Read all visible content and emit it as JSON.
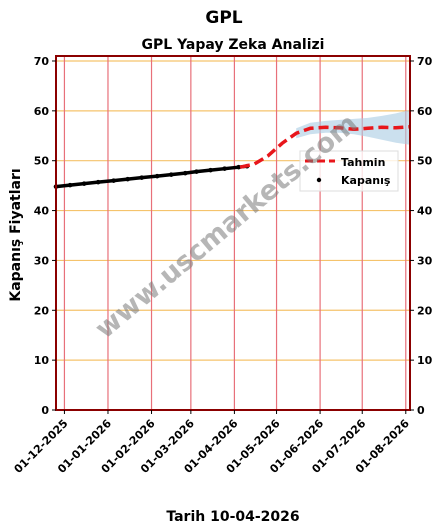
{
  "header": {
    "ticker": "GPL"
  },
  "footer": {
    "date_label": "Tarih 10-04-2026"
  },
  "watermark": "www.uscmarkets.com",
  "chart_data": {
    "type": "line",
    "title": "GPL Yapay Zeka Analizi",
    "xlabel": "",
    "ylabel": "Kapanış Fiyatları",
    "ylim": [
      0,
      71
    ],
    "xlim": [
      "2025-11-25",
      "2026-08-04"
    ],
    "yticks": [
      0,
      10,
      20,
      30,
      40,
      50,
      60,
      70
    ],
    "xticks": [
      "2025-12-01",
      "2026-01-01",
      "2026-02-01",
      "2026-03-01",
      "2026-04-01",
      "2026-05-01",
      "2026-06-01",
      "2026-07-01",
      "2026-08-01"
    ],
    "xtick_labels": [
      "01-12-2025",
      "01-01-2026",
      "01-02-2026",
      "01-03-2026",
      "01-04-2026",
      "01-05-2026",
      "01-06-2026",
      "01-07-2026",
      "01-08-2026"
    ],
    "grid": true,
    "legend_position": "center-right",
    "colors": {
      "forecast": "#e8161b",
      "close": "#000000",
      "band": "#a9cbe3",
      "grid_v": "#e8707a",
      "grid_h": "#f5c36c",
      "frame": "#8b0000"
    },
    "series": [
      {
        "name": "Kapanış",
        "style": "dots",
        "x": [
          "2025-11-25",
          "2025-12-05",
          "2025-12-15",
          "2025-12-25",
          "2026-01-05",
          "2026-01-15",
          "2026-01-25",
          "2026-02-05",
          "2026-02-15",
          "2026-02-25",
          "2026-03-05",
          "2026-03-15",
          "2026-03-25",
          "2026-04-04",
          "2026-04-10"
        ],
        "y": [
          44.8,
          45.1,
          45.4,
          45.7,
          46.0,
          46.3,
          46.6,
          46.9,
          47.2,
          47.5,
          47.8,
          48.1,
          48.4,
          48.7,
          48.9
        ]
      },
      {
        "name": "Tahmin",
        "style": "dashed",
        "x": [
          "2026-04-05",
          "2026-04-15",
          "2026-04-25",
          "2026-05-05",
          "2026-05-15",
          "2026-05-25",
          "2026-06-05",
          "2026-06-15",
          "2026-06-25",
          "2026-07-05",
          "2026-07-15",
          "2026-07-25",
          "2026-08-04"
        ],
        "y": [
          48.7,
          49.3,
          51.0,
          53.5,
          55.5,
          56.5,
          56.7,
          56.6,
          56.3,
          56.5,
          56.7,
          56.6,
          56.8
        ]
      }
    ],
    "band": {
      "x": [
        "2026-05-15",
        "2026-05-25",
        "2026-06-05",
        "2026-06-15",
        "2026-06-25",
        "2026-07-05",
        "2026-07-15",
        "2026-07-25",
        "2026-08-04"
      ],
      "upper": [
        56.5,
        57.6,
        58.0,
        58.2,
        58.4,
        58.6,
        59.0,
        59.5,
        60.2
      ],
      "lower": [
        54.5,
        55.3,
        55.6,
        55.6,
        55.3,
        54.8,
        54.2,
        53.6,
        53.2
      ]
    }
  }
}
